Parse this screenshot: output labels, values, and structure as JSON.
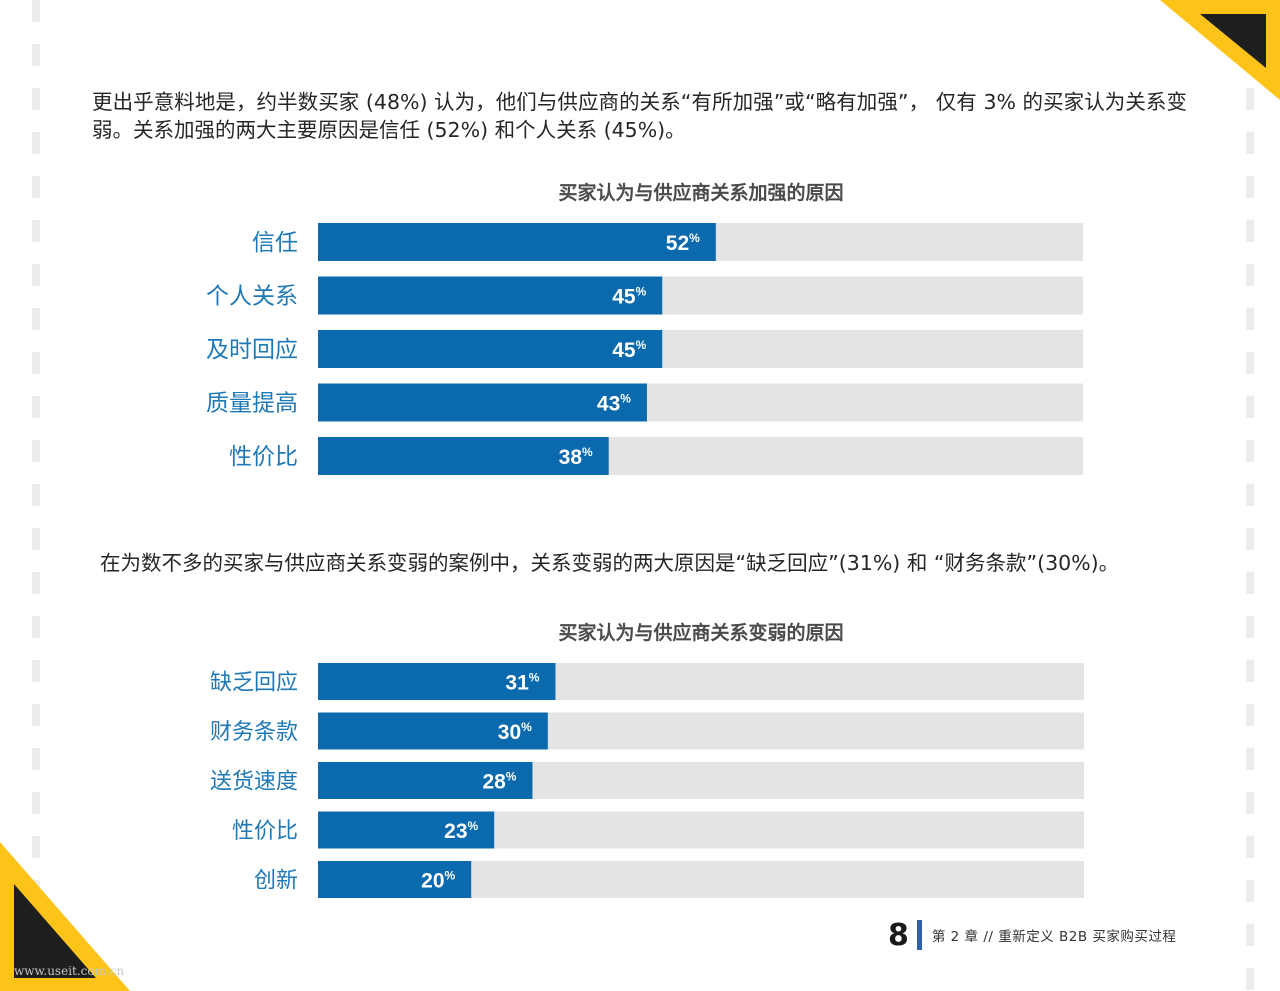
{
  "intro_text": "更出乎意料地是，约半数买家 (48%) 认为，他们与供应商的关系“有所加强”或“略有加强”， 仅有 3% 的买家认为关系变弱。关系加强的两大主要原因是信任 (52%) 和个人关系 (45%)。",
  "mid_text": "在为数不多的买家与供应商关系变弱的案例中，关系变弱的两大原因是“缺乏回应”(31%) 和 “财务条款”(30%)。",
  "colors": {
    "bar": "#0a6aad",
    "track": "#e4e4e4",
    "category_label": "#1e79b6",
    "accent_yellow": "#fcc419",
    "dark_triangle": "#1e1e1e"
  },
  "chart_data": [
    {
      "type": "bar",
      "orientation": "horizontal",
      "title": "买家认为与供应商关系加强的原因",
      "categories": [
        "信任",
        "个人关系",
        "及时回应",
        "质量提高",
        "性价比"
      ],
      "values": [
        52,
        45,
        45,
        43,
        38
      ],
      "value_labels": [
        "52",
        "45",
        "45",
        "43",
        "38"
      ],
      "unit": "%",
      "xlim": [
        0,
        100
      ],
      "grid": false,
      "legend": "none"
    },
    {
      "type": "bar",
      "orientation": "horizontal",
      "title": "买家认为与供应商关系变弱的原因",
      "categories": [
        "缺乏回应",
        "财务条款",
        "送货速度",
        "性价比",
        "创新"
      ],
      "values": [
        31,
        30,
        28,
        23,
        20
      ],
      "value_labels": [
        "31",
        "30",
        "28",
        "23",
        "20"
      ],
      "unit": "%",
      "xlim": [
        0,
        100
      ],
      "grid": false,
      "legend": "none"
    }
  ],
  "footer": {
    "page_number": "8",
    "chapter": "第 2 章 // 重新定义 B2B 买家购买过程"
  },
  "watermark": "www.useit.com.cn"
}
